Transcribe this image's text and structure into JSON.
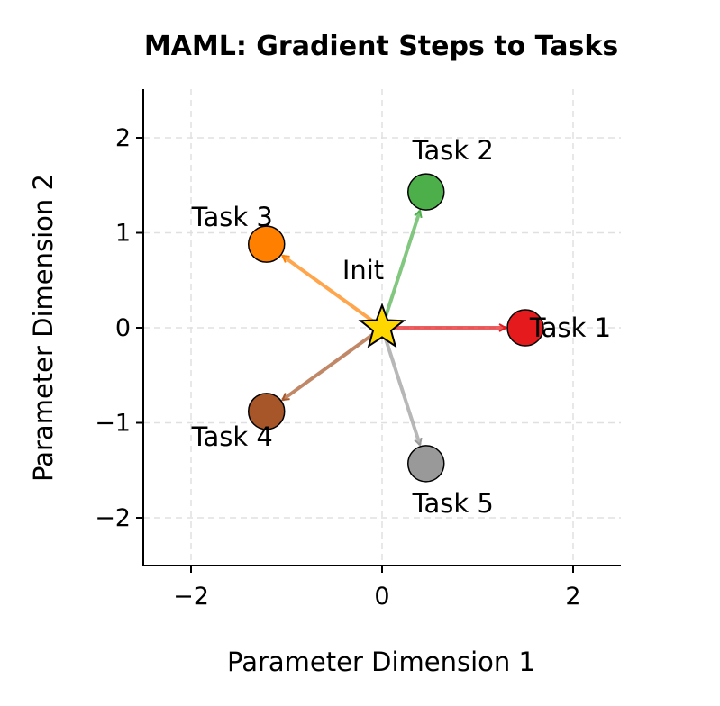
{
  "chart_data": {
    "type": "scatter",
    "title": "MAML: Gradient Steps to Tasks",
    "xlabel": "Parameter Dimension 1",
    "ylabel": "Parameter Dimension 2",
    "xlim": [
      -2.5,
      2.5
    ],
    "ylim": [
      -2.5,
      2.5
    ],
    "xticks": [
      -2,
      0,
      2
    ],
    "yticks": [
      -2,
      -1,
      0,
      1,
      2
    ],
    "xtick_labels": [
      "−2",
      "0",
      "2"
    ],
    "ytick_labels": [
      "−2",
      "−1",
      "0",
      "1",
      "2"
    ],
    "grid": true,
    "origin": {
      "label": "Init",
      "x": 0,
      "y": 0,
      "color": "#FFD700",
      "marker": "star"
    },
    "tasks": [
      {
        "label": "Task 1",
        "x": 1.5,
        "y": 0.0,
        "color": "#E41A1C"
      },
      {
        "label": "Task 2",
        "x": 0.46,
        "y": 1.43,
        "color": "#4DAF4A"
      },
      {
        "label": "Task 3",
        "x": -1.21,
        "y": 0.88,
        "color": "#FF7F00"
      },
      {
        "label": "Task 4",
        "x": -1.21,
        "y": -0.88,
        "color": "#A65628"
      },
      {
        "label": "Task 5",
        "x": 0.46,
        "y": -1.43,
        "color": "#999999"
      }
    ]
  }
}
